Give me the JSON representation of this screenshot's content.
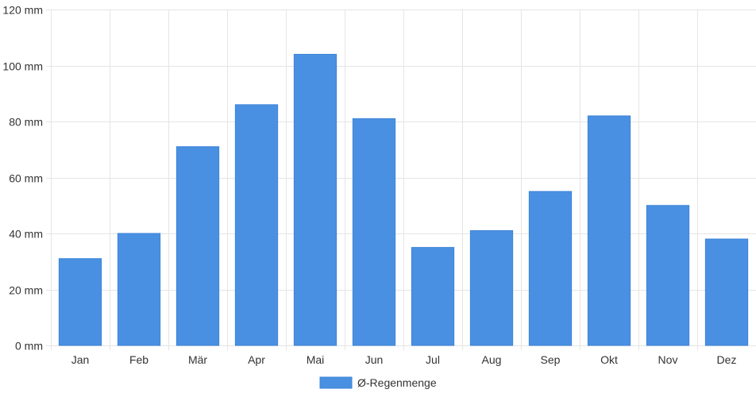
{
  "chart_data": {
    "type": "bar",
    "categories": [
      "Jan",
      "Feb",
      "Mär",
      "Apr",
      "Mai",
      "Jun",
      "Jul",
      "Aug",
      "Sep",
      "Okt",
      "Nov",
      "Dez"
    ],
    "series": [
      {
        "name": "Ø-Regenmenge",
        "values": [
          31,
          40,
          71,
          86,
          104,
          81,
          35,
          41,
          55,
          82,
          50,
          38
        ],
        "color": "#4a90e2"
      }
    ],
    "ylim": [
      0,
      120
    ],
    "yticks": [
      0,
      20,
      40,
      60,
      80,
      100,
      120
    ],
    "y_unit": "mm",
    "grid": true,
    "legend_position": "bottom"
  }
}
